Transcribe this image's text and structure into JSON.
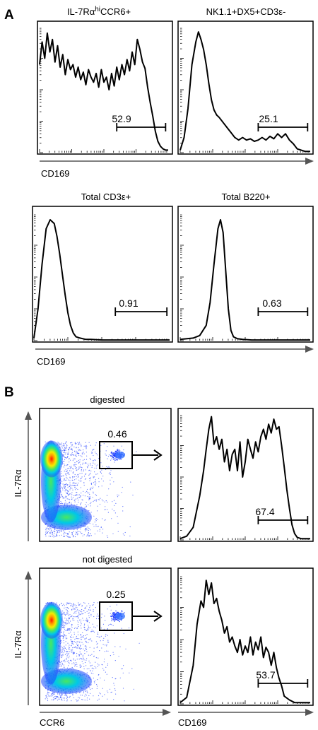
{
  "panel_a": {
    "label": "A",
    "axis_label_row1": "CD169",
    "axis_label_row2": "CD169",
    "histograms": [
      {
        "title_pre": "IL-7Rα",
        "title_sup": "hi",
        "title_post": "CCR6+",
        "gate_value": "52.9",
        "chart_data": {
          "type": "area",
          "x_range": [
            0,
            1
          ],
          "y_range": [
            0,
            100
          ],
          "x": [
            0,
            0.02,
            0.04,
            0.06,
            0.08,
            0.1,
            0.12,
            0.14,
            0.16,
            0.18,
            0.2,
            0.22,
            0.24,
            0.26,
            0.28,
            0.3,
            0.32,
            0.34,
            0.36,
            0.38,
            0.4,
            0.42,
            0.44,
            0.46,
            0.48,
            0.5,
            0.52,
            0.54,
            0.56,
            0.58,
            0.6,
            0.62,
            0.64,
            0.66,
            0.68,
            0.7,
            0.72,
            0.74,
            0.76,
            0.78,
            0.8,
            0.82,
            0.84,
            0.86,
            0.88,
            0.9,
            0.92,
            0.94,
            0.96,
            0.98,
            1.0
          ],
          "y": [
            70,
            88,
            75,
            95,
            80,
            90,
            72,
            85,
            68,
            78,
            62,
            74,
            66,
            70,
            60,
            68,
            58,
            64,
            54,
            66,
            60,
            56,
            63,
            52,
            66,
            56,
            60,
            50,
            63,
            53,
            68,
            58,
            70,
            62,
            74,
            65,
            80,
            70,
            90,
            82,
            72,
            67,
            52,
            40,
            29,
            17,
            9,
            5,
            3,
            2,
            2
          ],
          "gate": {
            "from": 0.6,
            "to": 0.98
          }
        }
      },
      {
        "title": "NK1.1+DX5+CD3ε-",
        "gate_value": "25.1",
        "chart_data": {
          "type": "area",
          "x_range": [
            0,
            1
          ],
          "y_range": [
            0,
            100
          ],
          "x": [
            0,
            0.03,
            0.06,
            0.09,
            0.12,
            0.14,
            0.16,
            0.18,
            0.2,
            0.22,
            0.24,
            0.26,
            0.28,
            0.3,
            0.33,
            0.36,
            0.39,
            0.42,
            0.45,
            0.48,
            0.51,
            0.54,
            0.57,
            0.6,
            0.63,
            0.66,
            0.69,
            0.72,
            0.75,
            0.78,
            0.81,
            0.84,
            0.87,
            0.9,
            0.93,
            0.96,
            1.0
          ],
          "y": [
            2,
            12,
            35,
            70,
            88,
            96,
            90,
            82,
            70,
            55,
            42,
            34,
            30,
            28,
            24,
            20,
            16,
            12,
            10,
            12,
            10,
            11,
            9,
            10,
            12,
            10,
            13,
            11,
            15,
            12,
            15,
            10,
            7,
            3,
            2,
            1,
            1
          ],
          "gate": {
            "from": 0.6,
            "to": 0.98
          }
        }
      }
    ],
    "histograms_row2": [
      {
        "title": "Total CD3ε+",
        "gate_value": "0.91",
        "chart_data": {
          "type": "area",
          "x_range": [
            0,
            1
          ],
          "y_range": [
            0,
            100
          ],
          "x": [
            0,
            0.03,
            0.06,
            0.09,
            0.12,
            0.15,
            0.17,
            0.19,
            0.21,
            0.23,
            0.25,
            0.27,
            0.29,
            0.31,
            0.34,
            0.38,
            0.42,
            0.5,
            0.6,
            0.7,
            0.8,
            0.9,
            1.0
          ],
          "y": [
            2,
            25,
            60,
            88,
            95,
            92,
            82,
            68,
            52,
            36,
            22,
            12,
            6,
            3,
            2,
            1,
            1,
            0.5,
            0.5,
            0.5,
            0.5,
            0.5,
            0.5
          ],
          "gate": {
            "from": 0.6,
            "to": 0.98
          }
        }
      },
      {
        "title": "Total B220+",
        "gate_value": "0.63",
        "chart_data": {
          "type": "area",
          "x_range": [
            0,
            1
          ],
          "y_range": [
            0,
            100
          ],
          "x": [
            0,
            0.1,
            0.15,
            0.2,
            0.23,
            0.26,
            0.29,
            0.31,
            0.33,
            0.35,
            0.37,
            0.39,
            0.41,
            0.44,
            0.48,
            0.55,
            0.65,
            0.8,
            1.0
          ],
          "y": [
            1,
            2,
            4,
            12,
            30,
            60,
            88,
            95,
            85,
            55,
            25,
            8,
            3,
            1.5,
            1,
            0.5,
            0.5,
            0.5,
            0.5
          ],
          "gate": {
            "from": 0.6,
            "to": 0.98
          }
        }
      }
    ]
  },
  "panel_b": {
    "label": "B",
    "rows": [
      {
        "condition": "digested",
        "gate_value": "0.46",
        "dotplot_ylabel": "IL-7Rα",
        "histogram_value": "67.4",
        "chart_data": {
          "type": "area",
          "x_range": [
            0,
            1
          ],
          "y_range": [
            0,
            100
          ],
          "x": [
            0,
            0.05,
            0.1,
            0.15,
            0.18,
            0.2,
            0.22,
            0.24,
            0.26,
            0.28,
            0.3,
            0.32,
            0.34,
            0.36,
            0.38,
            0.4,
            0.42,
            0.44,
            0.46,
            0.48,
            0.5,
            0.52,
            0.54,
            0.56,
            0.58,
            0.6,
            0.62,
            0.64,
            0.66,
            0.68,
            0.7,
            0.72,
            0.74,
            0.76,
            0.78,
            0.8,
            0.82,
            0.84,
            0.86,
            0.88,
            0.9,
            0.93,
            0.96,
            1.0
          ],
          "y": [
            1,
            3,
            10,
            35,
            55,
            72,
            88,
            98,
            76,
            82,
            72,
            80,
            62,
            72,
            55,
            68,
            72,
            55,
            78,
            50,
            62,
            80,
            72,
            65,
            78,
            70,
            82,
            88,
            80,
            92,
            85,
            96,
            88,
            90,
            75,
            58,
            40,
            25,
            12,
            5,
            2,
            1,
            1,
            1
          ],
          "gate": {
            "from": 0.6,
            "to": 0.98
          }
        }
      },
      {
        "condition": "not digested",
        "gate_value": "0.25",
        "dotplot_ylabel": "IL-7Rα",
        "dotplot_xlabel": "CCR6",
        "histogram_value": "53.7",
        "histogram_xlabel": "CD169",
        "chart_data": {
          "type": "area",
          "x_range": [
            0,
            1
          ],
          "y_range": [
            0,
            100
          ],
          "x": [
            0,
            0.05,
            0.1,
            0.13,
            0.16,
            0.18,
            0.2,
            0.22,
            0.24,
            0.26,
            0.28,
            0.3,
            0.32,
            0.34,
            0.36,
            0.38,
            0.4,
            0.42,
            0.44,
            0.46,
            0.48,
            0.5,
            0.52,
            0.54,
            0.56,
            0.58,
            0.6,
            0.62,
            0.64,
            0.66,
            0.68,
            0.7,
            0.72,
            0.74,
            0.76,
            0.78,
            0.8,
            0.84,
            0.88,
            0.92,
            1.0
          ],
          "y": [
            1,
            5,
            30,
            62,
            80,
            75,
            96,
            85,
            94,
            78,
            82,
            72,
            65,
            55,
            60,
            48,
            52,
            45,
            40,
            50,
            38,
            45,
            40,
            52,
            38,
            48,
            42,
            52,
            36,
            44,
            40,
            30,
            40,
            28,
            20,
            14,
            6,
            3,
            1,
            1,
            1
          ],
          "gate": {
            "from": 0.6,
            "to": 0.98
          }
        }
      }
    ]
  }
}
